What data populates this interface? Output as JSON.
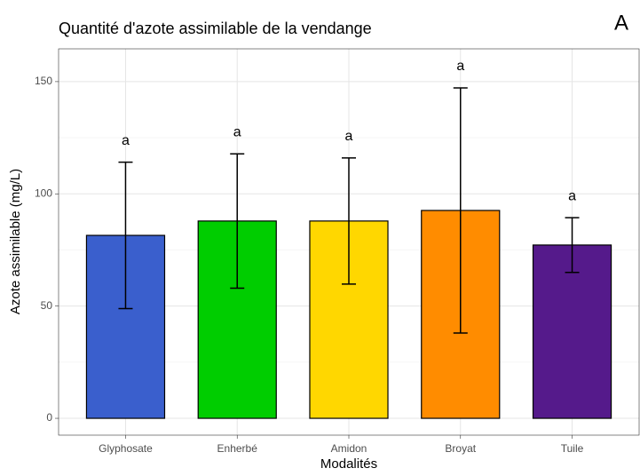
{
  "chart_data": {
    "type": "bar",
    "title": "Quantité d'azote assimilable de la vendange",
    "panel_label": "A",
    "x_label": "Modalités",
    "y_label": "Azote assimilable (mg/L)",
    "categories": [
      "Glyphosate",
      "Enherbé",
      "Amidon",
      "Broyat",
      "Tuile"
    ],
    "values": [
      81.5,
      87.9,
      87.9,
      92.6,
      77.2
    ],
    "errors": [
      32.6,
      29.9,
      28.1,
      54.6,
      12.2
    ],
    "letters": [
      "a",
      "a",
      "a",
      "a",
      "a"
    ],
    "colors": [
      "#3a5fcd",
      "#00cd00",
      "#ffd700",
      "#ff8c00",
      "#551a8b"
    ],
    "ylim": [
      -7.5,
      164.6
    ],
    "yticks": [
      0,
      50,
      100,
      150
    ],
    "minor_yticks": [
      25,
      75,
      125
    ],
    "grid": true
  }
}
